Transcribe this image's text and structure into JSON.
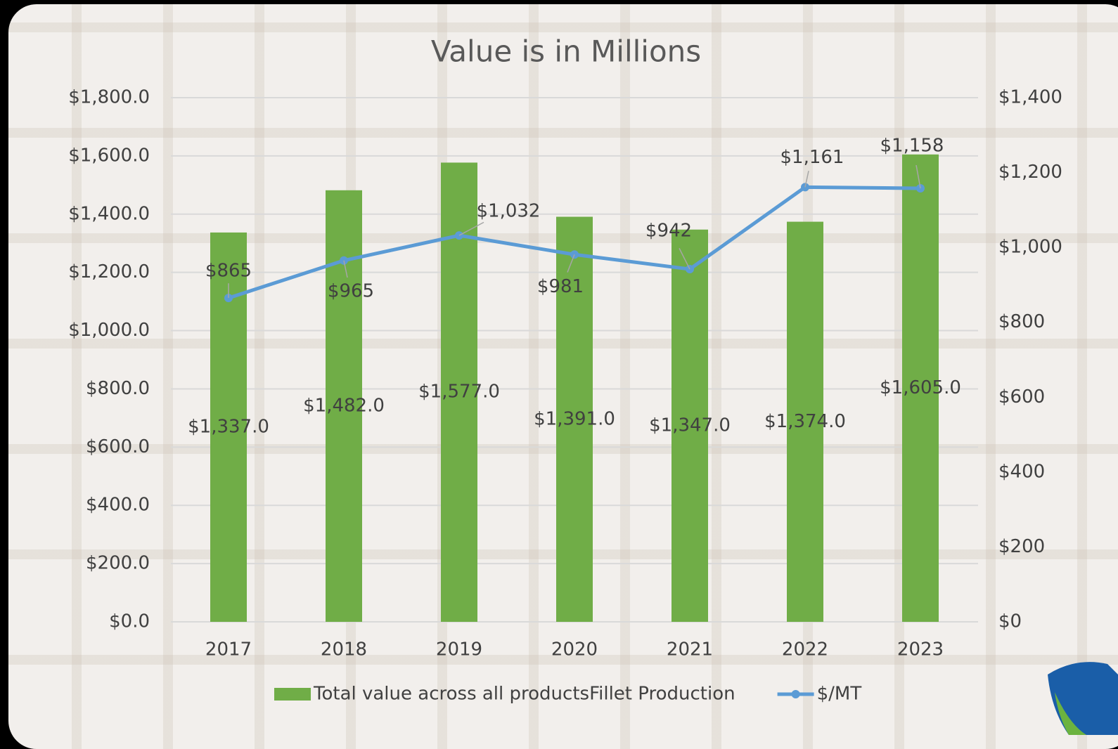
{
  "chart_data": {
    "type": "bar",
    "title": "Value is in Millions",
    "categories": [
      "2017",
      "2018",
      "2019",
      "2020",
      "2021",
      "2022",
      "2023"
    ],
    "series": [
      {
        "name": "Total value across all productsFillet Production",
        "type": "bar",
        "color": "#70ad47",
        "values": [
          1337,
          1482,
          1577,
          1391,
          1347,
          1374,
          1605
        ],
        "value_labels": [
          "$1,337.0",
          "$1,482.0",
          "$1,577.0",
          "$1,391.0",
          "$1,347.0",
          "$1,374.0",
          "$1,605.0"
        ]
      },
      {
        "name": "$/MT",
        "type": "line",
        "axis": "y2",
        "color": "#5b9bd5",
        "values": [
          865,
          965,
          1032,
          981,
          942,
          1161,
          1158
        ],
        "value_labels": [
          "$865",
          "$965",
          "$1,032",
          "$981",
          "$942",
          "$1,161",
          "$1,158"
        ]
      }
    ],
    "ylim": [
      0,
      1800
    ],
    "yticks": [
      {
        "value": 0,
        "label": "$0.0"
      },
      {
        "value": 200,
        "label": "$200.0"
      },
      {
        "value": 400,
        "label": "$400.0"
      },
      {
        "value": 600,
        "label": "$600.0"
      },
      {
        "value": 800,
        "label": "$800.0"
      },
      {
        "value": 1000,
        "label": "$1,000.0"
      },
      {
        "value": 1200,
        "label": "$1,200.0"
      },
      {
        "value": 1400,
        "label": "$1,400.0"
      },
      {
        "value": 1600,
        "label": "$1,600.0"
      },
      {
        "value": 1800,
        "label": "$1,800.0"
      }
    ],
    "y2lim": [
      0,
      1400
    ],
    "y2ticks": [
      {
        "value": 0,
        "label": "$0"
      },
      {
        "value": 200,
        "label": "$200"
      },
      {
        "value": 400,
        "label": "$400"
      },
      {
        "value": 600,
        "label": "$600"
      },
      {
        "value": 800,
        "label": "$800"
      },
      {
        "value": 1000,
        "label": "$1,000"
      },
      {
        "value": 1200,
        "label": "$1,200"
      },
      {
        "value": 1400,
        "label": "$1,400"
      }
    ],
    "grid": true,
    "legend": "bottom"
  }
}
